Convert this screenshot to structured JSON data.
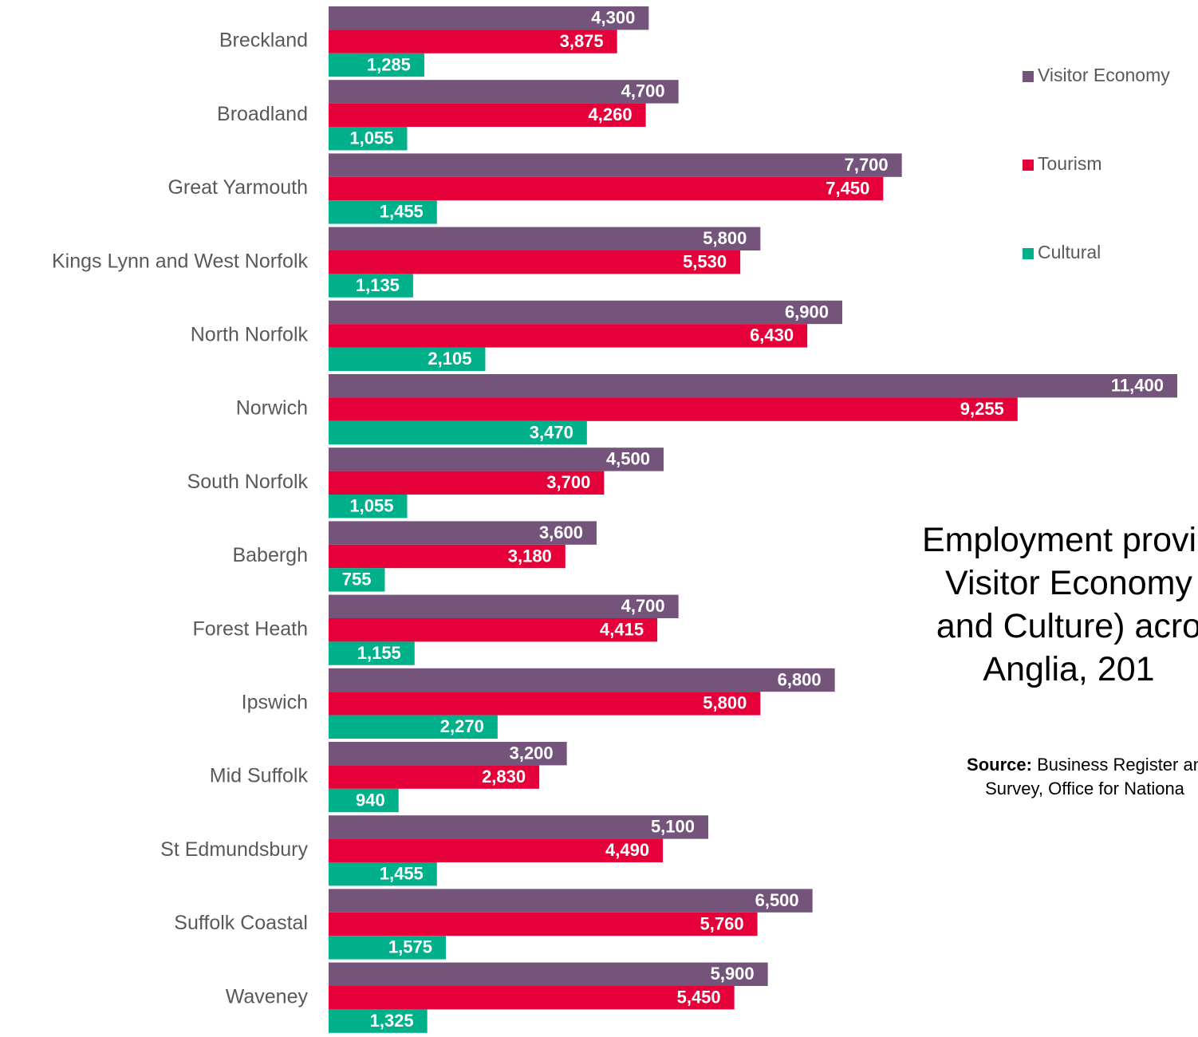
{
  "chart_data": {
    "type": "bar",
    "orientation": "horizontal",
    "categories": [
      "Breckland",
      "Broadland",
      "Great Yarmouth",
      "Kings Lynn and West Norfolk",
      "North Norfolk",
      "Norwich",
      "South Norfolk",
      "Babergh",
      "Forest Heath",
      "Ipswich",
      "Mid Suffolk",
      "St Edmundsbury",
      "Suffolk Coastal",
      "Waveney"
    ],
    "series": [
      {
        "name": "Visitor Economy",
        "color": "#74547a",
        "values": [
          4300,
          4700,
          7700,
          5800,
          6900,
          11400,
          4500,
          3600,
          4700,
          6800,
          3200,
          5100,
          6500,
          5900
        ],
        "labels": [
          "4,300",
          "4,700",
          "7,700",
          "5,800",
          "6,900",
          "11,400",
          "4,500",
          "3,600",
          "4,700",
          "6,800",
          "3,200",
          "5,100",
          "6,500",
          "5,900"
        ]
      },
      {
        "name": "Tourism",
        "color": "#e5003a",
        "values": [
          3875,
          4260,
          7450,
          5530,
          6430,
          9255,
          3700,
          3180,
          4415,
          5800,
          2830,
          4490,
          5760,
          5450
        ],
        "labels": [
          "3,875",
          "4,260",
          "7,450",
          "5,530",
          "6,430",
          "9,255",
          "3,700",
          "3,180",
          "4,415",
          "5,800",
          "2,830",
          "4,490",
          "5,760",
          "5,450"
        ]
      },
      {
        "name": "Cultural",
        "color": "#00b08b",
        "values": [
          1285,
          1055,
          1455,
          1135,
          2105,
          3470,
          1055,
          755,
          1155,
          2270,
          940,
          1455,
          1575,
          1325
        ],
        "labels": [
          "1,285",
          "1,055",
          "1,455",
          "1,135",
          "2,105",
          "3,470",
          "1,055",
          "755",
          "1,155",
          "2,270",
          "940",
          "1,455",
          "1,575",
          "1,325"
        ]
      }
    ],
    "xlim": [
      0,
      11400
    ],
    "grid": false,
    "legend_position": "top-right",
    "data_labels": "inside-end"
  },
  "title": {
    "lines": [
      "Employment provid",
      "Visitor Economy",
      "and Culture) acro",
      "Anglia, 201"
    ]
  },
  "source": {
    "label": "Source:",
    "line1_text": " Business Register an",
    "line2_text": "Survey, Office for Nationa"
  }
}
